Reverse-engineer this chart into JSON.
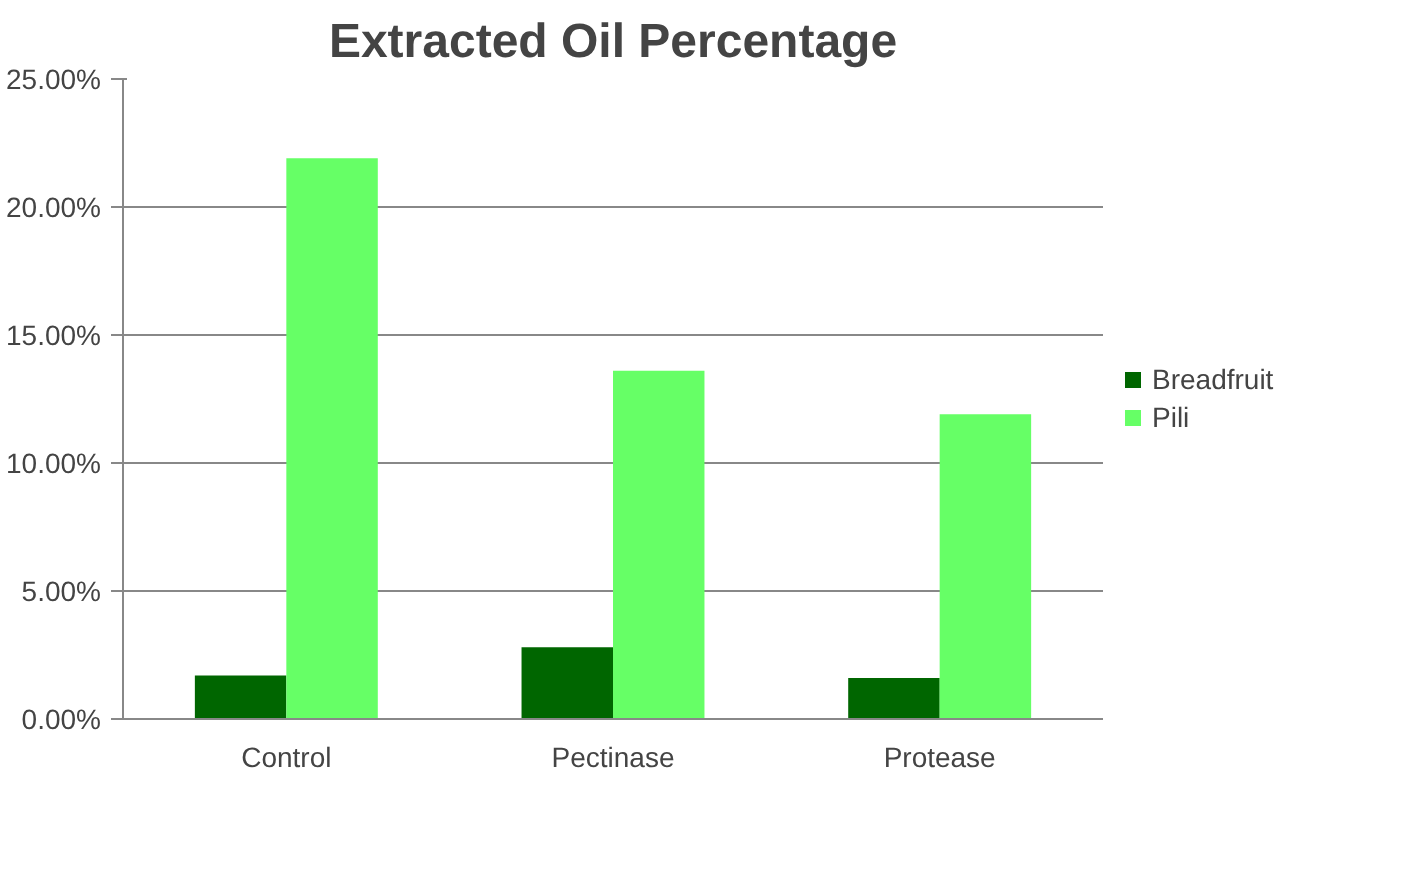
{
  "chart_data": {
    "type": "bar",
    "title": "Extracted Oil Percentage",
    "categories": [
      "Control",
      "Pectinase",
      "Protease"
    ],
    "series": [
      {
        "name": "Breadfruit",
        "color": "#006600",
        "values": [
          1.7,
          2.8,
          1.6
        ]
      },
      {
        "name": "Pili",
        "color": "#66ff66",
        "values": [
          21.9,
          13.6,
          11.9
        ]
      }
    ],
    "ylim": [
      0,
      25
    ],
    "yticks": [
      {
        "value": 0,
        "label": "0.00%"
      },
      {
        "value": 5,
        "label": "5.00%"
      },
      {
        "value": 10,
        "label": "10.00%"
      },
      {
        "value": 15,
        "label": "15.00%"
      },
      {
        "value": 20,
        "label": "20.00%"
      },
      {
        "value": 25,
        "label": "25.00%"
      }
    ],
    "grid": "y",
    "legend": "right"
  }
}
